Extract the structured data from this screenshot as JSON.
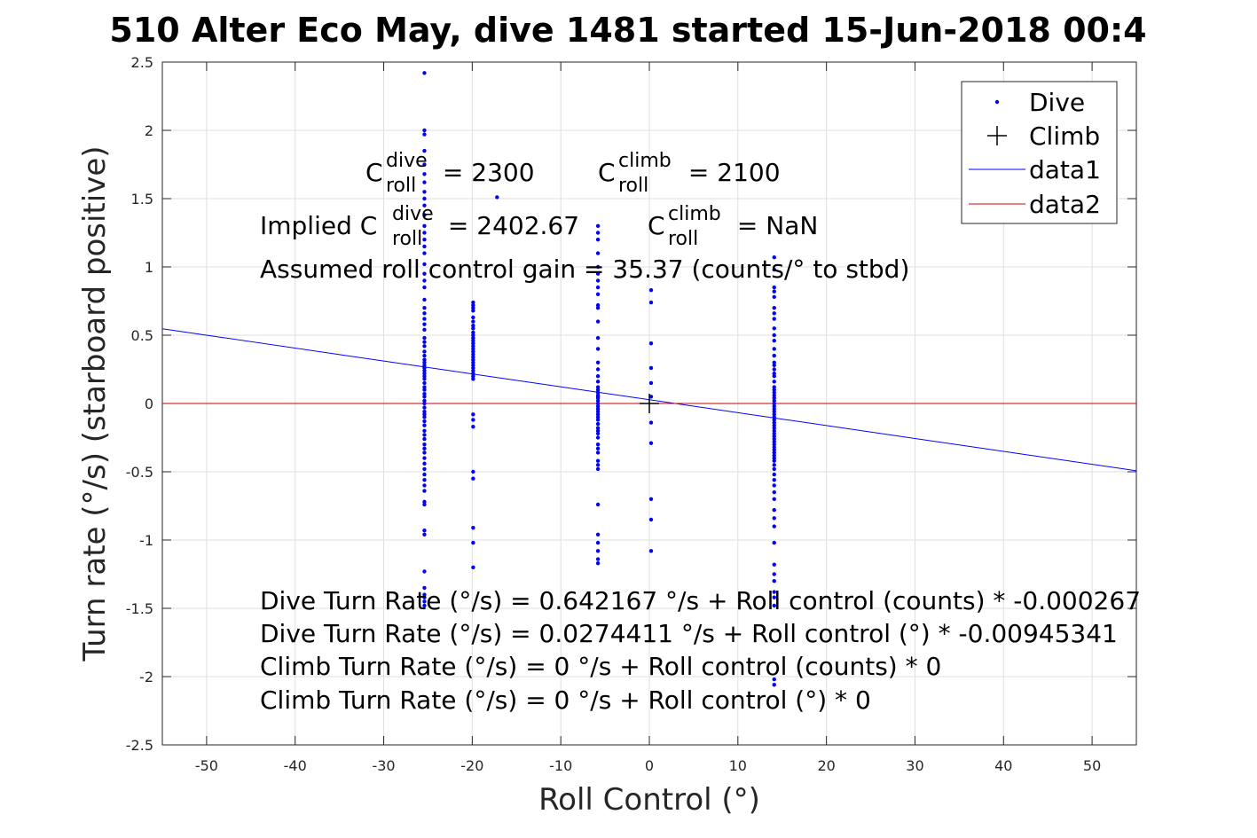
{
  "chart_data": {
    "type": "scatter",
    "title": "510 Alter Eco May, dive 1481 started 15-Jun-2018 00:4",
    "xlabel": "Roll Control (°)",
    "ylabel": "Turn rate (°/s) (starboard positive)",
    "xlim": [
      -55,
      55
    ],
    "ylim": [
      -2.5,
      2.5
    ],
    "xticks": [
      -50,
      -40,
      -30,
      -20,
      -10,
      0,
      10,
      20,
      30,
      40,
      50
    ],
    "xtick_labels": [
      "-50",
      "-40",
      "-30",
      "-20",
      "-10",
      "0",
      "10",
      "20",
      "30",
      "40",
      "50"
    ],
    "yticks": [
      2.5,
      2,
      1.5,
      1,
      0.5,
      0,
      -0.5,
      -1,
      -1.5,
      -2,
      -2.5
    ],
    "ytick_labels": [
      "2.5",
      "2",
      "1.5",
      "1",
      "0.5",
      "0",
      "-0.5",
      "-1",
      "-1.5",
      "-2",
      "-2.5"
    ],
    "grid": true,
    "legend_position": "top-right",
    "colors": {
      "dive": "#0000ff",
      "climb": "#000000",
      "data1": "#0000ff",
      "data2": "#cc0000"
    },
    "series": [
      {
        "name": "Dive",
        "marker": "dot",
        "columns": [
          {
            "x": -25.4,
            "y": [
              2.42,
              2.0,
              1.97,
              1.85,
              1.75,
              1.68,
              1.62,
              1.55,
              1.5,
              1.45,
              1.38,
              1.3,
              1.25,
              1.2,
              1.15,
              1.1,
              1.02,
              0.95,
              0.9,
              0.85,
              0.76,
              0.7,
              0.66,
              0.62,
              0.58,
              0.54,
              0.48,
              0.45,
              0.42,
              0.38,
              0.35,
              0.32,
              0.3,
              0.28,
              0.26,
              0.24,
              0.22,
              0.2,
              0.18,
              0.15,
              0.12,
              0.1,
              0.07,
              0.05,
              0.02,
              0.0,
              -0.03,
              -0.06,
              -0.08,
              -0.1,
              -0.13,
              -0.16,
              -0.2,
              -0.23,
              -0.26,
              -0.3,
              -0.33,
              -0.36,
              -0.4,
              -0.44,
              -0.48,
              -0.52,
              -0.56,
              -0.6,
              -0.64,
              -0.72,
              -0.74,
              -0.93,
              -0.96,
              -1.23,
              -1.35,
              -1.4,
              -1.42,
              -1.45,
              -1.48
            ]
          },
          {
            "x": -19.9,
            "y": [
              0.74,
              0.72,
              0.7,
              0.68,
              0.63,
              0.6,
              0.57,
              0.55,
              0.52,
              0.5,
              0.48,
              0.46,
              0.44,
              0.42,
              0.4,
              0.38,
              0.36,
              0.34,
              0.32,
              0.3,
              0.28,
              0.26,
              0.24,
              0.22,
              0.2,
              0.18,
              -0.08,
              -0.12,
              -0.17,
              -0.5,
              -0.55,
              -0.91,
              -1.02,
              -1.2
            ]
          },
          {
            "x": -17.2,
            "y": [
              1.51
            ]
          },
          {
            "x": -5.8,
            "y": [
              1.3,
              1.25,
              1.2,
              1.1,
              1.0,
              0.95,
              0.9,
              0.85,
              0.8,
              0.72,
              0.7,
              0.6,
              0.48,
              0.4,
              0.3,
              0.25,
              0.2,
              0.16,
              0.12,
              0.1,
              0.08,
              0.06,
              0.05,
              0.04,
              0.02,
              0.0,
              -0.02,
              -0.04,
              -0.06,
              -0.08,
              -0.1,
              -0.12,
              -0.15,
              -0.18,
              -0.2,
              -0.22,
              -0.25,
              -0.3,
              -0.33,
              -0.36,
              -0.42,
              -0.45,
              -0.48,
              -0.74,
              -0.96,
              -1.02,
              -1.08,
              -1.14,
              -1.17
            ]
          },
          {
            "x": 0.2,
            "y": [
              0.83,
              0.74,
              0.44,
              0.26,
              0.15,
              0.05,
              -0.14,
              -0.29,
              -0.7,
              -0.85,
              -1.08
            ]
          },
          {
            "x": 14.1,
            "y": [
              1.07,
              0.98,
              0.85,
              0.82,
              0.78,
              0.7,
              0.66,
              0.62,
              0.55,
              0.5,
              0.46,
              0.4,
              0.35,
              0.3,
              0.28,
              0.25,
              0.22,
              0.2,
              0.16,
              0.12,
              0.1,
              0.08,
              0.06,
              0.04,
              0.02,
              0.0,
              -0.02,
              -0.04,
              -0.06,
              -0.08,
              -0.1,
              -0.12,
              -0.14,
              -0.16,
              -0.18,
              -0.2,
              -0.22,
              -0.24,
              -0.26,
              -0.28,
              -0.3,
              -0.32,
              -0.34,
              -0.36,
              -0.38,
              -0.4,
              -0.42,
              -0.45,
              -0.48,
              -0.52,
              -0.56,
              -0.6,
              -0.65,
              -0.7,
              -0.78,
              -0.84,
              -0.9,
              -1.02,
              -1.18,
              -1.25,
              -1.3,
              -1.38,
              -1.42,
              -1.48,
              -2.02,
              -2.06
            ]
          }
        ]
      },
      {
        "name": "Climb",
        "marker": "plus",
        "points": [
          [
            0,
            0.0
          ]
        ]
      },
      {
        "name": "data1",
        "type": "line",
        "x": [
          -55,
          55
        ],
        "y": [
          0.5474,
          -0.4926
        ]
      },
      {
        "name": "data2",
        "type": "line",
        "x": [
          -55,
          55
        ],
        "y": [
          0,
          0
        ]
      }
    ],
    "annotations": {
      "c_dive": {
        "base": "C",
        "sup": "dive",
        "sub": "roll",
        "value": " = 2300"
      },
      "c_climb": {
        "base": "C",
        "sup": "climb",
        "sub": "roll",
        "value": " = 2100"
      },
      "implied_dive": {
        "prefix": "Implied C",
        "sup": "dive",
        "sub": "roll",
        "value": " = 2402.67"
      },
      "implied_climb": {
        "base": "C",
        "sup": "climb",
        "sub": "roll",
        "value": " = NaN"
      },
      "gain": "Assumed roll control gain = 35.37 (counts/° to stbd)",
      "equations": [
        "Dive Turn Rate (°/s) = 0.642167 °/s + Roll control (counts) * -0.000267",
        "Dive Turn Rate (°/s) = 0.0274411 °/s + Roll control (°) * -0.00945341",
        "Climb Turn Rate (°/s) = 0 °/s + Roll control (counts) * 0",
        "Climb Turn Rate (°/s) = 0 °/s + Roll control (°) * 0"
      ]
    }
  }
}
